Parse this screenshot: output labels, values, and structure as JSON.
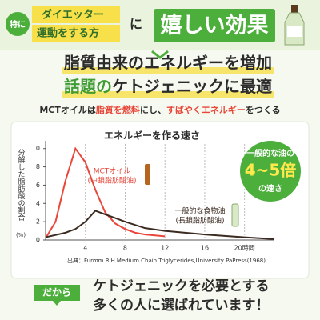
{
  "header": {
    "badge": "特に",
    "ribbon_line1": "ダイエッター",
    "ribbon_line2": "運動をする方",
    "particle": "に",
    "highlight": "嬉しい効果"
  },
  "headline": {
    "line1": "脂質由来のエネルギーを増加",
    "line2_accent": "話題の",
    "line2_rest": "ケトジェニックに最適"
  },
  "subline": [
    "MCTオイルは",
    "脂質を燃料",
    "にし、",
    "すばやくエネルギー",
    "をつくる"
  ],
  "chart_data": {
    "type": "line",
    "title": "エネルギーを作る速さ",
    "y_label": "分解した脂肪酸の割合",
    "y_unit": "(%)",
    "xlim": [
      0,
      23
    ],
    "xticks": [
      4,
      8,
      12,
      16,
      {
        "value": 20,
        "label": "20時間"
      }
    ],
    "ylim": [
      0,
      10.5
    ],
    "yticks": [
      0,
      2,
      4,
      6,
      8,
      10
    ],
    "grid": true,
    "series": [
      {
        "name": "MCTオイル",
        "name_note": "(中鎖脂肪酸油)",
        "color": "#e8473a",
        "x": [
          0,
          1,
          2,
          3,
          4,
          5,
          6,
          7,
          8,
          9,
          10,
          11,
          12
        ],
        "values": [
          0.2,
          2,
          6.5,
          10,
          8.5,
          5.5,
          3,
          1.8,
          1.2,
          0.8,
          0.6,
          0.5,
          0.4
        ]
      },
      {
        "name": "一般的な食物油",
        "name_note": "(長鎖脂肪酸油)",
        "color": "#3b2a20",
        "x": [
          0,
          2,
          3,
          4,
          5,
          6,
          7,
          8,
          10,
          12,
          16,
          20,
          23
        ],
        "values": [
          0.3,
          0.8,
          1.2,
          2,
          3.2,
          2.8,
          2.4,
          2,
          1.3,
          1,
          0.6,
          0.3,
          0.1
        ]
      }
    ],
    "callout": {
      "line1": "一般的な油の",
      "line2": "4~5倍",
      "line3": "の速さ"
    },
    "source": "出典：Furmm.R.H.Medium Chain Triglycerides,University PaPress(1968)"
  },
  "footer": {
    "badge": "だから",
    "line1": "ケトジェニックを必要とする",
    "line2": "多くの人に選ばれています！"
  }
}
